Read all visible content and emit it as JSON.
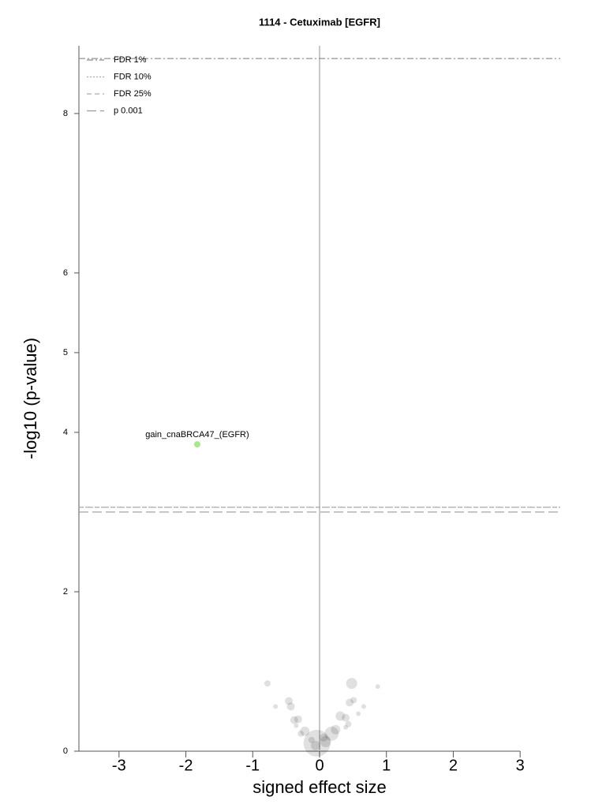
{
  "chart_data": {
    "type": "scatter",
    "title": "1114 - Cetuximab [EGFR]",
    "x_label": "signed effect size",
    "y_label": "-log10 (p-value)",
    "xlim": [
      -3.6,
      3.6
    ],
    "ylim": [
      0,
      8.85
    ],
    "xticks": [
      -3,
      -2,
      -1,
      0,
      1,
      2,
      3
    ],
    "yticks": [
      0,
      2,
      4,
      5,
      6,
      8
    ],
    "legend": "top-left",
    "reference_lines": [
      {
        "name": "FDR 1%",
        "value": 8.69,
        "style": "dashdot",
        "color": "#888888"
      },
      {
        "name": "FDR 10%",
        "value": 3.06,
        "style": "dotted",
        "color": "#aaaaaa"
      },
      {
        "name": "FDR 25%",
        "value": 3.06,
        "style": "dashed",
        "color": "#aaaaaa"
      },
      {
        "name": "p 0.001",
        "value": 3.0,
        "style": "longdash",
        "color": "#999999"
      }
    ],
    "series": [
      {
        "color": "#000000",
        "x": [
          -0.78,
          -0.66,
          -0.46,
          -0.43,
          -0.38,
          -0.32,
          -0.35,
          -0.28,
          -0.22,
          -0.04,
          -0.06,
          0.09,
          0.18,
          0.24,
          0.31,
          0.39,
          0.43,
          0.39,
          0.45,
          0.51,
          0.48,
          0.58,
          0.66,
          0.87,
          0.06,
          -0.12
        ],
        "values": [
          0.85,
          0.56,
          0.63,
          0.56,
          0.39,
          0.4,
          0.32,
          0.22,
          0.25,
          0.1,
          0.07,
          0.12,
          0.22,
          0.27,
          0.44,
          0.42,
          0.34,
          0.3,
          0.61,
          0.64,
          0.85,
          0.47,
          0.56,
          0.81,
          0.17,
          0.14
        ],
        "sizes": [
          4,
          3,
          5,
          5,
          5,
          5,
          3,
          4,
          6,
          17,
          6,
          7,
          9,
          6,
          6,
          5,
          4,
          3,
          5,
          4,
          7,
          3,
          3,
          3,
          5,
          4
        ]
      },
      {
        "color": "#a6e88a",
        "x": [
          -1.83
        ],
        "values": [
          3.85
        ],
        "sizes": [
          4
        ],
        "labels": [
          "gain_cnaBRCA47_(EGFR)"
        ]
      }
    ]
  }
}
